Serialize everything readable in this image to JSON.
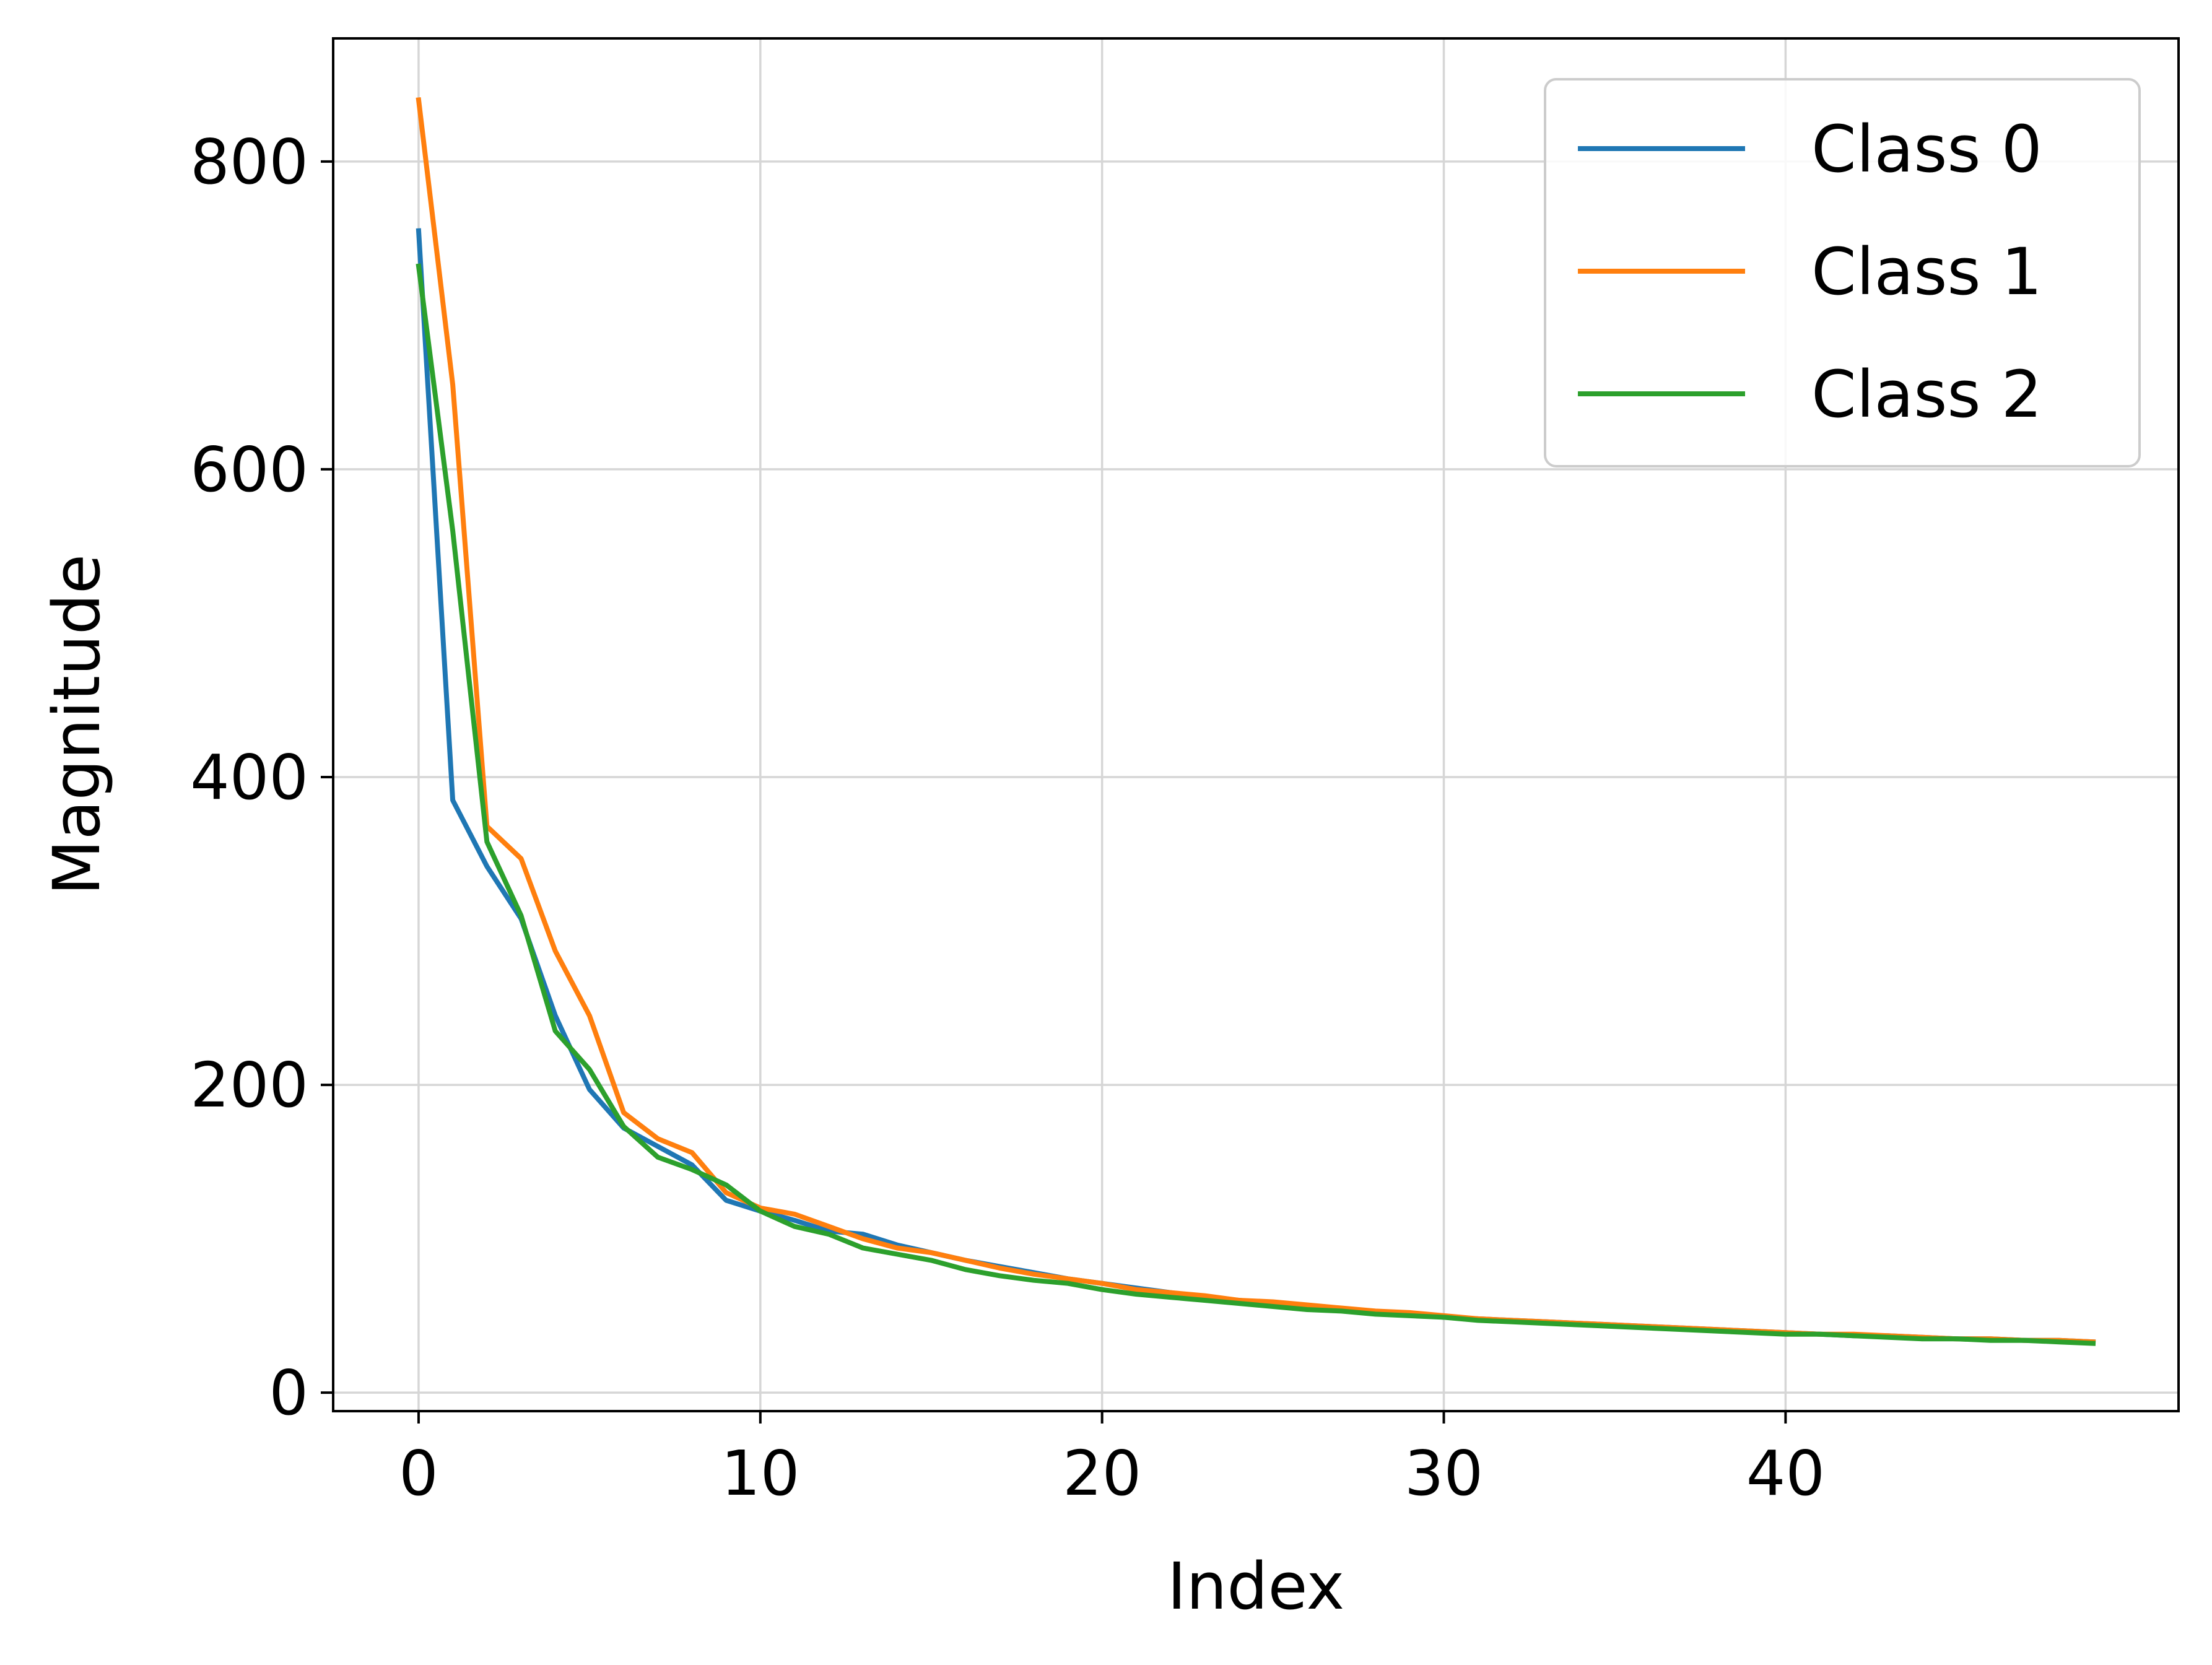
{
  "chart_data": {
    "type": "line",
    "title": "",
    "xlabel": "Index",
    "ylabel": "Magnitude",
    "xlim": [
      -2.5,
      51.5
    ],
    "ylim": [
      -12,
      880
    ],
    "xticks": [
      0,
      10,
      20,
      30,
      40
    ],
    "yticks": [
      0,
      200,
      400,
      600,
      800
    ],
    "xtick_labels": [
      "0",
      "10",
      "20",
      "30",
      "40"
    ],
    "ytick_labels": [
      "0",
      "200",
      "400",
      "600",
      "800"
    ],
    "grid": true,
    "legend": "top-right",
    "x": [
      0,
      1,
      2,
      3,
      4,
      5,
      6,
      7,
      8,
      9,
      10,
      11,
      12,
      13,
      14,
      15,
      16,
      17,
      18,
      19,
      20,
      21,
      22,
      23,
      24,
      25,
      26,
      27,
      28,
      29,
      30,
      31,
      32,
      33,
      34,
      35,
      36,
      37,
      38,
      39,
      40,
      41,
      42,
      43,
      44,
      45,
      46,
      47,
      48,
      49
    ],
    "series": [
      {
        "name": "Class 0",
        "color": "#1f77b4",
        "values": [
          755,
          385,
          342,
          308,
          245,
          197,
          172,
          160,
          148,
          125,
          118,
          112,
          105,
          103,
          96,
          91,
          86,
          82,
          78,
          74,
          71,
          68,
          65,
          62,
          60,
          58,
          56,
          54,
          52,
          51,
          49,
          48,
          47,
          46,
          45,
          44,
          43,
          42,
          41,
          40,
          39,
          38,
          37,
          37,
          36,
          35,
          35,
          34,
          34,
          33
        ]
      },
      {
        "name": "Class 1",
        "color": "#ff7f0e",
        "values": [
          840,
          655,
          368,
          347,
          287,
          245,
          182,
          165,
          156,
          130,
          120,
          116,
          108,
          100,
          94,
          91,
          86,
          81,
          77,
          74,
          71,
          67,
          65,
          63,
          60,
          59,
          57,
          55,
          53,
          52,
          50,
          48,
          47,
          46,
          45,
          44,
          43,
          42,
          41,
          40,
          39,
          38,
          38,
          37,
          36,
          35,
          35,
          34,
          34,
          33
        ]
      },
      {
        "name": "Class 2",
        "color": "#2ca02c",
        "values": [
          732,
          560,
          358,
          310,
          235,
          210,
          173,
          153,
          145,
          135,
          118,
          108,
          103,
          94,
          90,
          86,
          80,
          76,
          73,
          71,
          67,
          64,
          62,
          60,
          58,
          56,
          54,
          53,
          51,
          50,
          49,
          47,
          46,
          45,
          44,
          43,
          42,
          41,
          40,
          39,
          38,
          38,
          37,
          36,
          35,
          35,
          34,
          34,
          33,
          32
        ]
      }
    ]
  }
}
